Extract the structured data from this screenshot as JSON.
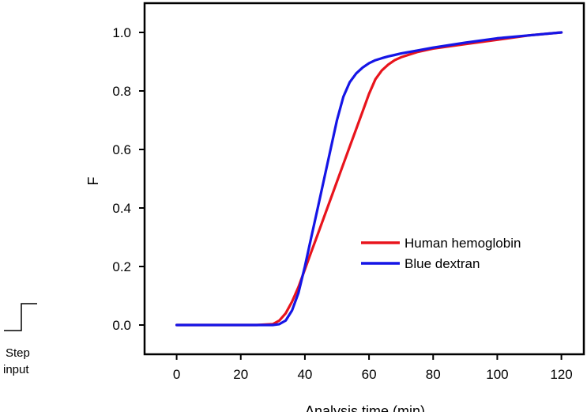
{
  "chart_data": {
    "type": "line",
    "title": "",
    "xlabel": "Analysis time (min)",
    "ylabel": "F",
    "xlim": [
      -10,
      127
    ],
    "ylim": [
      -0.1,
      1.1
    ],
    "xticks": [
      0,
      20,
      40,
      60,
      80,
      100,
      120
    ],
    "xtick_labels": [
      "0",
      "20",
      "40",
      "60",
      "80",
      "100",
      "120"
    ],
    "yticks": [
      0.0,
      0.2,
      0.4,
      0.6,
      0.8,
      1.0
    ],
    "ytick_labels": [
      "0.0",
      "0.2",
      "0.4",
      "0.6",
      "0.8",
      "1.0"
    ],
    "grid": false,
    "legend_position": "center-right",
    "series": [
      {
        "name": "Human hemoglobin",
        "color": "#e8141c",
        "x": [
          0,
          25,
          30,
          32,
          34,
          36,
          38,
          40,
          42,
          44,
          46,
          48,
          50,
          52,
          54,
          56,
          58,
          60,
          62,
          64,
          66,
          68,
          70,
          75,
          80,
          90,
          100,
          110,
          120
        ],
        "y": [
          0,
          0,
          0.003,
          0.015,
          0.04,
          0.08,
          0.13,
          0.19,
          0.25,
          0.31,
          0.37,
          0.43,
          0.49,
          0.55,
          0.61,
          0.67,
          0.73,
          0.79,
          0.84,
          0.87,
          0.89,
          0.905,
          0.915,
          0.933,
          0.945,
          0.96,
          0.975,
          0.99,
          1.0
        ]
      },
      {
        "name": "Blue dextran",
        "color": "#1515e6",
        "x": [
          0,
          25,
          30,
          32,
          34,
          36,
          38,
          40,
          42,
          44,
          46,
          48,
          50,
          52,
          54,
          56,
          58,
          60,
          62,
          64,
          66,
          68,
          70,
          75,
          80,
          90,
          100,
          110,
          120
        ],
        "y": [
          0,
          0,
          0.0,
          0.003,
          0.015,
          0.05,
          0.11,
          0.2,
          0.3,
          0.4,
          0.5,
          0.6,
          0.7,
          0.78,
          0.83,
          0.86,
          0.88,
          0.895,
          0.905,
          0.912,
          0.918,
          0.923,
          0.928,
          0.938,
          0.948,
          0.965,
          0.98,
          0.99,
          1.0
        ]
      }
    ]
  },
  "step_input": {
    "label_line1": "Step",
    "label_line2": "input"
  }
}
